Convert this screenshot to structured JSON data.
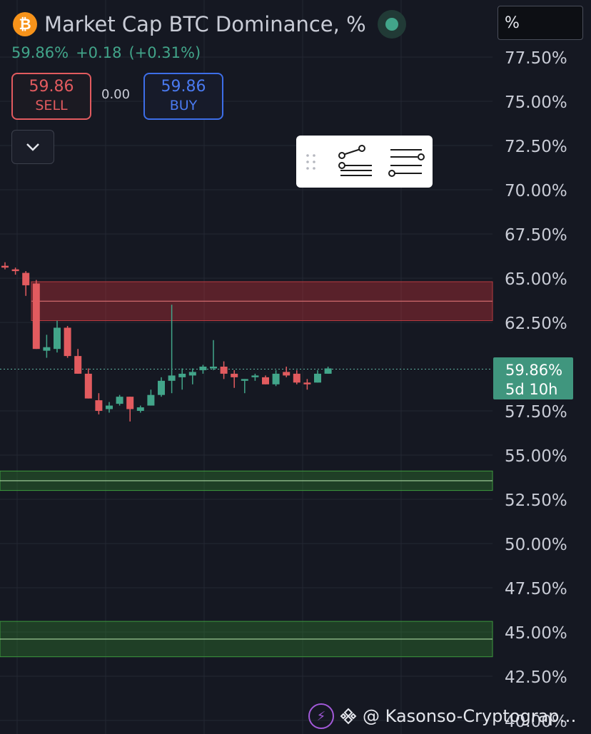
{
  "header": {
    "title": "Market Cap BTC Dominance, %",
    "btc_symbol": "₿",
    "last": "59.86%",
    "change": "+0.18",
    "change_pct": "(+0.31%)",
    "sell_value": "59.86",
    "sell_label": "SELL",
    "spread": "0.00",
    "buy_value": "59.86",
    "buy_label": "BUY"
  },
  "unit_selector": "%",
  "price_label": {
    "value": "59.86%",
    "countdown": "5d 10h"
  },
  "footer": {
    "watermark": "@ Kasonso-Cryptography..."
  },
  "colors": {
    "up": "#42a58a",
    "down": "#e25b5f",
    "resistance": "#e25b5f",
    "support": "#3a8d3a",
    "accent": "#4a7af0"
  },
  "chart_data": {
    "type": "candlestick",
    "y_axis_labels": [
      "77.50%",
      "75.00%",
      "72.50%",
      "70.00%",
      "67.50%",
      "65.00%",
      "62.50%",
      "59.86%",
      "57.50%",
      "55.00%",
      "52.50%",
      "50.00%",
      "47.50%",
      "45.00%",
      "42.50%",
      "40.00%"
    ],
    "ylim": [
      40.0,
      79.0
    ],
    "last_price": 59.86,
    "candles": [
      {
        "o": 65.7,
        "h": 65.9,
        "l": 65.5,
        "c": 65.6
      },
      {
        "o": 65.5,
        "h": 65.6,
        "l": 65.2,
        "c": 65.4
      },
      {
        "o": 65.3,
        "h": 65.4,
        "l": 64.0,
        "c": 64.6
      },
      {
        "o": 64.7,
        "h": 64.9,
        "l": 61.0,
        "c": 61.0
      },
      {
        "o": 60.9,
        "h": 61.8,
        "l": 60.5,
        "c": 61.1
      },
      {
        "o": 61.0,
        "h": 62.6,
        "l": 60.8,
        "c": 62.2
      },
      {
        "o": 62.2,
        "h": 62.3,
        "l": 60.5,
        "c": 60.6
      },
      {
        "o": 60.6,
        "h": 61.0,
        "l": 59.6,
        "c": 59.6
      },
      {
        "o": 59.6,
        "h": 59.9,
        "l": 58.2,
        "c": 58.2
      },
      {
        "o": 58.1,
        "h": 58.5,
        "l": 57.3,
        "c": 57.5
      },
      {
        "o": 57.6,
        "h": 58.0,
        "l": 57.4,
        "c": 57.8
      },
      {
        "o": 57.9,
        "h": 58.4,
        "l": 57.8,
        "c": 58.3
      },
      {
        "o": 58.3,
        "h": 58.3,
        "l": 56.9,
        "c": 57.6
      },
      {
        "o": 57.5,
        "h": 57.8,
        "l": 57.4,
        "c": 57.7
      },
      {
        "o": 57.8,
        "h": 58.7,
        "l": 57.8,
        "c": 58.4
      },
      {
        "o": 58.4,
        "h": 59.4,
        "l": 58.3,
        "c": 59.2
      },
      {
        "o": 59.2,
        "h": 63.5,
        "l": 58.5,
        "c": 59.5
      },
      {
        "o": 59.4,
        "h": 59.9,
        "l": 58.7,
        "c": 59.6
      },
      {
        "o": 59.5,
        "h": 59.9,
        "l": 59.0,
        "c": 59.7
      },
      {
        "o": 59.8,
        "h": 60.1,
        "l": 59.6,
        "c": 60.0
      },
      {
        "o": 59.9,
        "h": 61.5,
        "l": 59.8,
        "c": 60.0
      },
      {
        "o": 60.0,
        "h": 60.3,
        "l": 59.3,
        "c": 59.6
      },
      {
        "o": 59.6,
        "h": 59.8,
        "l": 58.8,
        "c": 59.4
      },
      {
        "o": 59.2,
        "h": 59.3,
        "l": 58.5,
        "c": 59.3
      },
      {
        "o": 59.4,
        "h": 59.6,
        "l": 59.2,
        "c": 59.5
      },
      {
        "o": 59.4,
        "h": 59.5,
        "l": 59.0,
        "c": 59.0
      },
      {
        "o": 59.0,
        "h": 59.8,
        "l": 58.9,
        "c": 59.6
      },
      {
        "o": 59.7,
        "h": 60.0,
        "l": 59.4,
        "c": 59.5
      },
      {
        "o": 59.6,
        "h": 59.8,
        "l": 59.0,
        "c": 59.1
      },
      {
        "o": 59.1,
        "h": 59.3,
        "l": 58.7,
        "c": 59.0
      },
      {
        "o": 59.1,
        "h": 59.8,
        "l": 59.1,
        "c": 59.6
      },
      {
        "o": 59.6,
        "h": 60.0,
        "l": 59.6,
        "c": 59.9
      }
    ],
    "zones": [
      {
        "type": "resistance",
        "from": 62.6,
        "to": 64.8,
        "mid": 63.7
      },
      {
        "type": "support",
        "from": 53.0,
        "to": 54.1,
        "mid": 53.55
      },
      {
        "type": "support",
        "from": 43.6,
        "to": 45.6,
        "mid": 44.6
      }
    ]
  }
}
